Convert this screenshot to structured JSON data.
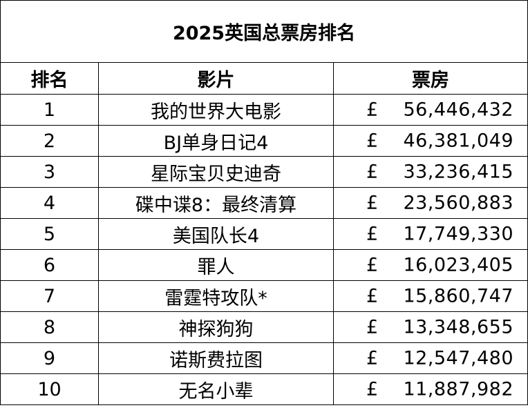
{
  "table": {
    "title": "2025英国总票房排名",
    "headers": {
      "rank": "排名",
      "film": "影片",
      "gross": "票房"
    },
    "currency_symbol": "£",
    "rows": [
      {
        "rank": "1",
        "film": "我的世界大电影",
        "gross": "56,446,432"
      },
      {
        "rank": "2",
        "film": "BJ单身日记4",
        "gross": "46,381,049"
      },
      {
        "rank": "3",
        "film": "星际宝贝史迪奇",
        "gross": "33,236,415"
      },
      {
        "rank": "4",
        "film": "碟中谍8：最终清算",
        "gross": "23,560,883"
      },
      {
        "rank": "5",
        "film": "美国队长4",
        "gross": "17,749,330"
      },
      {
        "rank": "6",
        "film": "罪人",
        "gross": "16,023,405"
      },
      {
        "rank": "7",
        "film": "雷霆特攻队*",
        "gross": "15,860,747"
      },
      {
        "rank": "8",
        "film": "神探狗狗",
        "gross": "13,348,655"
      },
      {
        "rank": "9",
        "film": "诺斯费拉图",
        "gross": "12,547,480"
      },
      {
        "rank": "10",
        "film": "无名小辈",
        "gross": "11,887,982"
      }
    ]
  }
}
